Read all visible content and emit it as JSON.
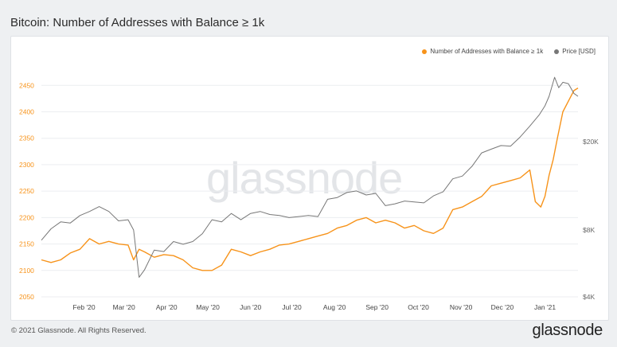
{
  "header": {
    "title": "Bitcoin: Number of Addresses with Balance ≥ 1k"
  },
  "footer": {
    "copyright": "© 2021 Glassnode. All Rights Reserved.",
    "logo": "glassnode"
  },
  "watermark": "glassnode",
  "legend": [
    {
      "label": "Number of Addresses with Balance ≥ 1k",
      "color": "#f7931a"
    },
    {
      "label": "Price [USD]",
      "color": "#777777"
    }
  ],
  "chart_data": {
    "type": "line",
    "title": "Bitcoin: Number of Addresses with Balance ≥ 1k",
    "legend_position": "top-right",
    "grid": "horizontal",
    "x_tick_labels": [
      "Feb '20",
      "Mar '20",
      "Apr '20",
      "May '20",
      "Jun '20",
      "Jul '20",
      "Aug '20",
      "Sep '20",
      "Oct '20",
      "Nov '20",
      "Dec '20",
      "Jan '21"
    ],
    "x_range": [
      "2020-01-01",
      "2021-01-25"
    ],
    "left_axis": {
      "ticks": [
        2050,
        2100,
        2150,
        2200,
        2250,
        2300,
        2350,
        2400,
        2450
      ],
      "range": [
        2050,
        2470
      ],
      "color": "#f7931a"
    },
    "right_axis": {
      "scale": "log",
      "ticks": [
        4000,
        8000,
        20000
      ],
      "tick_labels": [
        "$4K",
        "$8K",
        "$20K"
      ],
      "range": [
        4000,
        40000
      ]
    },
    "series": [
      {
        "name": "Number of Addresses with Balance ≥ 1k",
        "axis": "left",
        "color": "#f7931a",
        "x": [
          "2020-01-01",
          "2020-01-08",
          "2020-01-15",
          "2020-01-22",
          "2020-01-29",
          "2020-02-05",
          "2020-02-12",
          "2020-02-19",
          "2020-02-26",
          "2020-03-04",
          "2020-03-08",
          "2020-03-12",
          "2020-03-16",
          "2020-03-23",
          "2020-03-30",
          "2020-04-06",
          "2020-04-13",
          "2020-04-20",
          "2020-04-27",
          "2020-05-04",
          "2020-05-11",
          "2020-05-18",
          "2020-05-25",
          "2020-06-01",
          "2020-06-08",
          "2020-06-15",
          "2020-06-22",
          "2020-06-29",
          "2020-07-06",
          "2020-07-13",
          "2020-07-20",
          "2020-07-27",
          "2020-08-03",
          "2020-08-10",
          "2020-08-17",
          "2020-08-24",
          "2020-08-31",
          "2020-09-07",
          "2020-09-14",
          "2020-09-21",
          "2020-09-28",
          "2020-10-05",
          "2020-10-12",
          "2020-10-19",
          "2020-10-26",
          "2020-11-02",
          "2020-11-09",
          "2020-11-16",
          "2020-11-23",
          "2020-11-30",
          "2020-12-07",
          "2020-12-14",
          "2020-12-21",
          "2020-12-25",
          "2020-12-29",
          "2021-01-01",
          "2021-01-04",
          "2021-01-07",
          "2021-01-10",
          "2021-01-14",
          "2021-01-18",
          "2021-01-22",
          "2021-01-25"
        ],
        "values": [
          2120,
          2115,
          2120,
          2133,
          2140,
          2160,
          2150,
          2155,
          2150,
          2148,
          2120,
          2140,
          2135,
          2125,
          2130,
          2128,
          2120,
          2105,
          2100,
          2100,
          2110,
          2140,
          2135,
          2128,
          2135,
          2140,
          2148,
          2150,
          2155,
          2160,
          2165,
          2170,
          2180,
          2185,
          2195,
          2200,
          2190,
          2195,
          2190,
          2180,
          2185,
          2175,
          2170,
          2180,
          2215,
          2220,
          2230,
          2240,
          2260,
          2265,
          2270,
          2275,
          2290,
          2230,
          2220,
          2240,
          2280,
          2310,
          2350,
          2400,
          2420,
          2440,
          2445
        ]
      },
      {
        "name": "Price [USD]",
        "axis": "right",
        "color": "#777777",
        "x": [
          "2020-01-01",
          "2020-01-08",
          "2020-01-15",
          "2020-01-22",
          "2020-01-29",
          "2020-02-05",
          "2020-02-12",
          "2020-02-19",
          "2020-02-26",
          "2020-03-04",
          "2020-03-08",
          "2020-03-12",
          "2020-03-16",
          "2020-03-23",
          "2020-03-30",
          "2020-04-06",
          "2020-04-13",
          "2020-04-20",
          "2020-04-27",
          "2020-05-04",
          "2020-05-11",
          "2020-05-18",
          "2020-05-25",
          "2020-06-01",
          "2020-06-08",
          "2020-06-15",
          "2020-06-22",
          "2020-06-29",
          "2020-07-06",
          "2020-07-13",
          "2020-07-20",
          "2020-07-27",
          "2020-08-03",
          "2020-08-10",
          "2020-08-17",
          "2020-08-24",
          "2020-08-31",
          "2020-09-07",
          "2020-09-14",
          "2020-09-21",
          "2020-09-28",
          "2020-10-05",
          "2020-10-12",
          "2020-10-19",
          "2020-10-26",
          "2020-11-02",
          "2020-11-09",
          "2020-11-16",
          "2020-11-23",
          "2020-11-30",
          "2020-12-07",
          "2020-12-14",
          "2020-12-21",
          "2020-12-28",
          "2021-01-01",
          "2021-01-04",
          "2021-01-08",
          "2021-01-11",
          "2021-01-14",
          "2021-01-18",
          "2021-01-22",
          "2021-01-25"
        ],
        "values": [
          7200,
          8100,
          8700,
          8600,
          9300,
          9700,
          10200,
          9700,
          8800,
          8900,
          8000,
          4900,
          5300,
          6500,
          6400,
          7100,
          6900,
          7100,
          7700,
          8900,
          8700,
          9500,
          8900,
          9500,
          9700,
          9400,
          9300,
          9100,
          9200,
          9300,
          9200,
          11000,
          11200,
          11800,
          12000,
          11500,
          11700,
          10300,
          10500,
          10800,
          10700,
          10600,
          11400,
          11900,
          13600,
          14000,
          15500,
          17800,
          18500,
          19200,
          19100,
          21000,
          23500,
          26500,
          29000,
          32000,
          39000,
          35000,
          37000,
          36500,
          33000,
          32000
        ]
      }
    ]
  }
}
